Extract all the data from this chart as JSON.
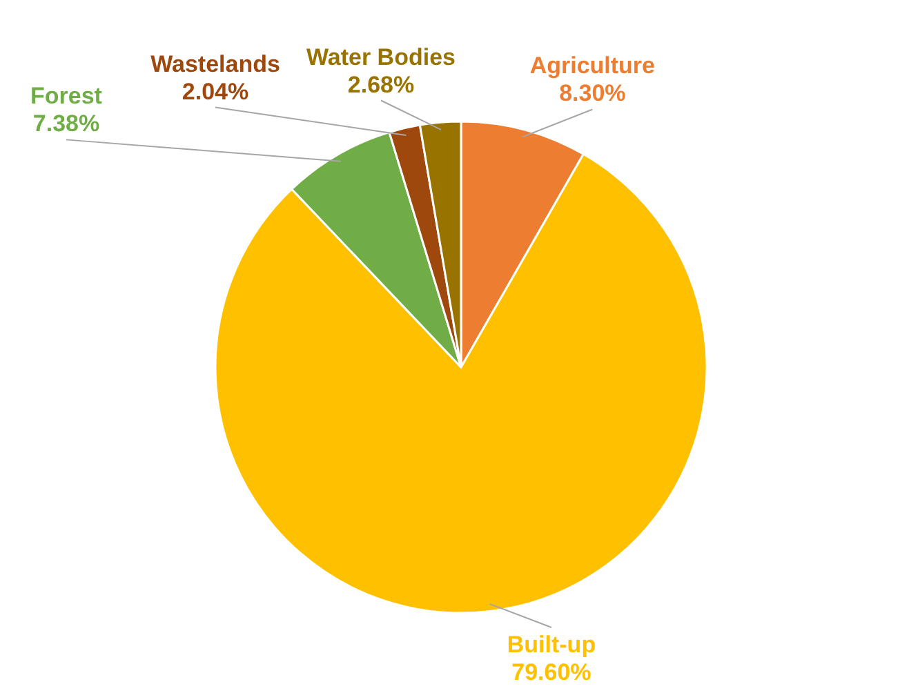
{
  "chart_data": {
    "type": "pie",
    "categories": [
      "Agriculture",
      "Built-up",
      "Forest",
      "Wastelands",
      "Water Bodies"
    ],
    "values": [
      8.3,
      79.6,
      7.38,
      2.04,
      2.68
    ],
    "value_labels": [
      "8.30%",
      "79.60%",
      "7.38%",
      "2.04%",
      "2.68%"
    ],
    "colors": [
      "#ed7d31",
      "#ffc000",
      "#70ad47",
      "#9e480e",
      "#997300"
    ]
  }
}
